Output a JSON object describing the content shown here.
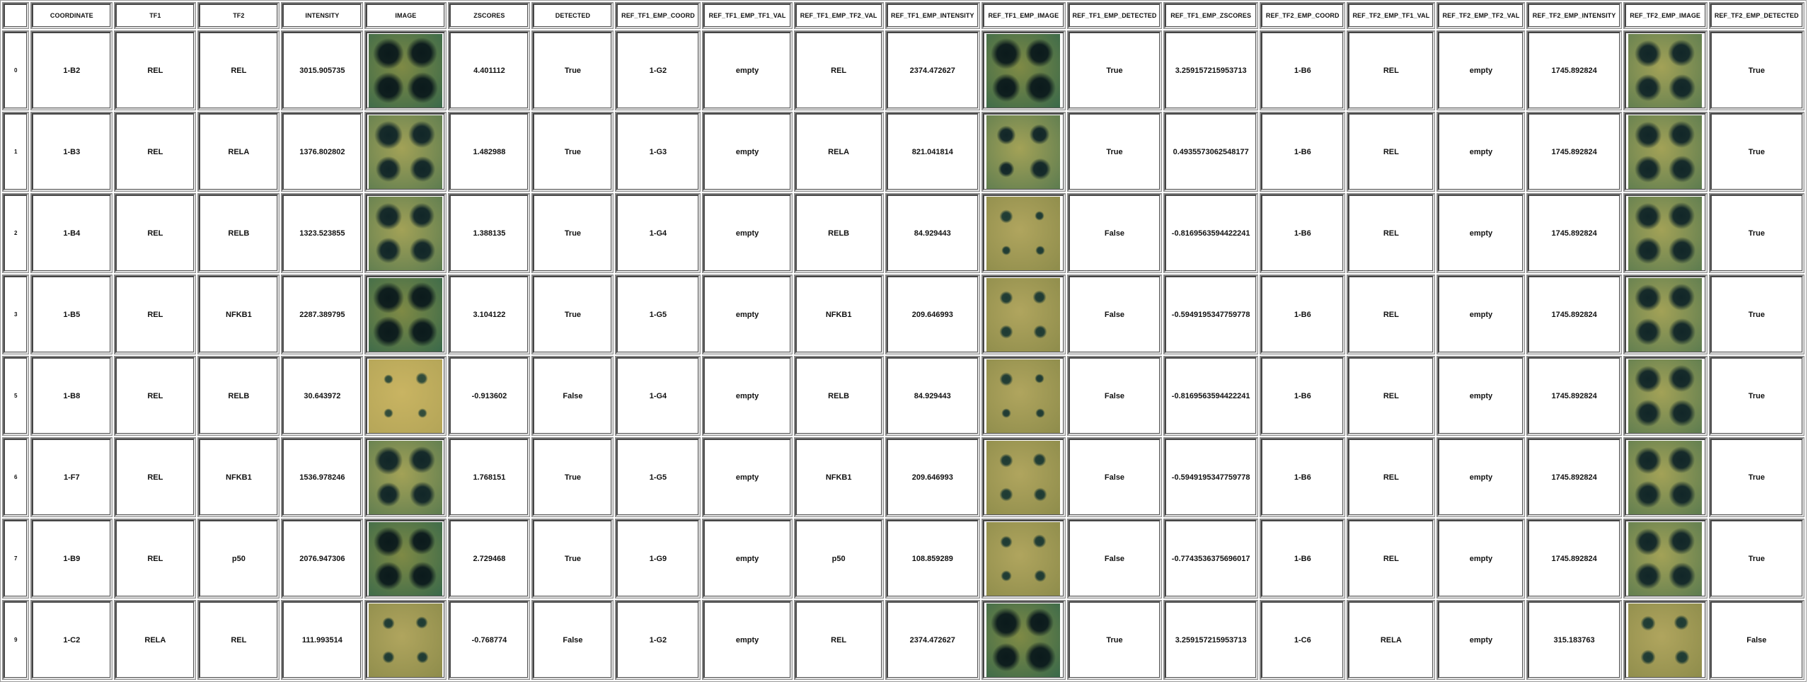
{
  "columns": [
    "",
    "COORDINATE",
    "TF1",
    "TF2",
    "INTENSITY",
    "IMAGE",
    "ZSCORES",
    "DETECTED",
    "REF_TF1_EMP_COORD",
    "REF_TF1_EMP_TF1_VAL",
    "REF_TF1_EMP_TF2_VAL",
    "REF_TF1_EMP_INTENSITY",
    "REF_TF1_EMP_IMAGE",
    "REF_TF1_EMP_DETECTED",
    "REF_TF1_EMP_ZSCORES",
    "REF_TF2_EMP_COORD",
    "REF_TF2_EMP_TF1_VAL",
    "REF_TF2_EMP_TF2_VAL",
    "REF_TF2_EMP_INTENSITY",
    "REF_TF2_EMP_IMAGE",
    "REF_TF2_EMP_DETECTED"
  ],
  "rows": [
    {
      "idx": "0",
      "coord": "1-B2",
      "tf1": "REL",
      "tf2": "REL",
      "intensity": "3015.905735",
      "image": {
        "tone": "dark",
        "spots": [
          1,
          1,
          1,
          1
        ]
      },
      "zscore": "4.401112",
      "detected": "True",
      "r1_coord": "1-G2",
      "r1_tf1": "empty",
      "r1_tf2": "REL",
      "r1_int": "2374.472627",
      "r1_image": {
        "tone": "dark",
        "spots": [
          1,
          0.9,
          0.9,
          1
        ]
      },
      "r1_det": "True",
      "r1_z": "3.259157215953713",
      "r2_coord": "1-B6",
      "r2_tf1": "REL",
      "r2_tf2": "empty",
      "r2_int": "1745.892824",
      "r2_image": {
        "tone": "mid",
        "spots": [
          0.85,
          0.85,
          0.85,
          0.85
        ]
      },
      "r2_det": "True"
    },
    {
      "idx": "1",
      "coord": "1-B3",
      "tf1": "REL",
      "tf2": "RELA",
      "intensity": "1376.802802",
      "image": {
        "tone": "mid",
        "spots": [
          0.9,
          0.85,
          0.8,
          0.8
        ]
      },
      "zscore": "1.482988",
      "detected": "True",
      "r1_coord": "1-G3",
      "r1_tf1": "empty",
      "r1_tf2": "RELA",
      "r1_int": "821.041814",
      "r1_image": {
        "tone": "mid",
        "spots": [
          0.55,
          0.6,
          0.45,
          0.65
        ]
      },
      "r1_det": "True",
      "r1_z": "0.4935573062548177",
      "r2_coord": "1-B6",
      "r2_tf1": "REL",
      "r2_tf2": "empty",
      "r2_int": "1745.892824",
      "r2_image": {
        "tone": "mid",
        "spots": [
          0.85,
          0.85,
          0.85,
          0.85
        ]
      },
      "r2_det": "True"
    },
    {
      "idx": "2",
      "coord": "1-B4",
      "tf1": "REL",
      "tf2": "RELB",
      "intensity": "1323.523855",
      "image": {
        "tone": "mid",
        "spots": [
          0.85,
          0.8,
          0.8,
          0.8
        ]
      },
      "zscore": "1.388135",
      "detected": "True",
      "r1_coord": "1-G4",
      "r1_tf1": "empty",
      "r1_tf2": "RELB",
      "r1_int": "84.929443",
      "r1_image": {
        "tone": "light",
        "spots": [
          0.35,
          0.2,
          0.2,
          0.2
        ]
      },
      "r1_det": "False",
      "r1_z": "-0.8169563594422241",
      "r2_coord": "1-B6",
      "r2_tf1": "REL",
      "r2_tf2": "empty",
      "r2_int": "1745.892824",
      "r2_image": {
        "tone": "mid",
        "spots": [
          0.85,
          0.85,
          0.85,
          0.85
        ]
      },
      "r2_det": "True"
    },
    {
      "idx": "3",
      "coord": "1-B5",
      "tf1": "REL",
      "tf2": "NFKB1",
      "intensity": "2287.389795",
      "image": {
        "tone": "dark",
        "spots": [
          1,
          0.95,
          1,
          0.95
        ]
      },
      "zscore": "3.104122",
      "detected": "True",
      "r1_coord": "1-G5",
      "r1_tf1": "empty",
      "r1_tf2": "NFKB1",
      "r1_int": "209.646993",
      "r1_image": {
        "tone": "light",
        "spots": [
          0.35,
          0.35,
          0.35,
          0.35
        ]
      },
      "r1_det": "False",
      "r1_z": "-0.5949195347759778",
      "r2_coord": "1-B6",
      "r2_tf1": "REL",
      "r2_tf2": "empty",
      "r2_int": "1745.892824",
      "r2_image": {
        "tone": "mid",
        "spots": [
          0.85,
          0.85,
          0.85,
          0.85
        ]
      },
      "r2_det": "True"
    },
    {
      "idx": "5",
      "coord": "1-B8",
      "tf1": "REL",
      "tf2": "RELB",
      "intensity": "30.643972",
      "image": {
        "tone": "pale",
        "spots": [
          0.2,
          0.3,
          0.2,
          0.2
        ]
      },
      "zscore": "-0.913602",
      "detected": "False",
      "r1_coord": "1-G4",
      "r1_tf1": "empty",
      "r1_tf2": "RELB",
      "r1_int": "84.929443",
      "r1_image": {
        "tone": "light",
        "spots": [
          0.35,
          0.2,
          0.2,
          0.2
        ]
      },
      "r1_det": "False",
      "r1_z": "-0.8169563594422241",
      "r2_coord": "1-B6",
      "r2_tf1": "REL",
      "r2_tf2": "empty",
      "r2_int": "1745.892824",
      "r2_image": {
        "tone": "mid",
        "spots": [
          0.85,
          0.85,
          0.85,
          0.85
        ]
      },
      "r2_det": "True"
    },
    {
      "idx": "6",
      "coord": "1-F7",
      "tf1": "REL",
      "tf2": "NFKB1",
      "intensity": "1536.978246",
      "image": {
        "tone": "mid",
        "spots": [
          0.9,
          0.85,
          0.75,
          0.8
        ]
      },
      "zscore": "1.768151",
      "detected": "True",
      "r1_coord": "1-G5",
      "r1_tf1": "empty",
      "r1_tf2": "NFKB1",
      "r1_int": "209.646993",
      "r1_image": {
        "tone": "light",
        "spots": [
          0.35,
          0.35,
          0.35,
          0.35
        ]
      },
      "r1_det": "False",
      "r1_z": "-0.5949195347759778",
      "r2_coord": "1-B6",
      "r2_tf1": "REL",
      "r2_tf2": "empty",
      "r2_int": "1745.892824",
      "r2_image": {
        "tone": "mid",
        "spots": [
          0.85,
          0.85,
          0.85,
          0.85
        ]
      },
      "r2_det": "True"
    },
    {
      "idx": "7",
      "coord": "1-B9",
      "tf1": "REL",
      "tf2": "p50",
      "intensity": "2076.947306",
      "image": {
        "tone": "dark",
        "spots": [
          0.95,
          0.85,
          0.9,
          0.9
        ]
      },
      "zscore": "2.729468",
      "detected": "True",
      "r1_coord": "1-G9",
      "r1_tf1": "empty",
      "r1_tf2": "p50",
      "r1_int": "108.859289",
      "r1_image": {
        "tone": "light",
        "spots": [
          0.3,
          0.35,
          0.25,
          0.3
        ]
      },
      "r1_det": "False",
      "r1_z": "-0.7743536375696017",
      "r2_coord": "1-B6",
      "r2_tf1": "REL",
      "r2_tf2": "empty",
      "r2_int": "1745.892824",
      "r2_image": {
        "tone": "mid",
        "spots": [
          0.85,
          0.85,
          0.85,
          0.85
        ]
      },
      "r2_det": "True"
    },
    {
      "idx": "9",
      "coord": "1-C2",
      "tf1": "RELA",
      "tf2": "REL",
      "intensity": "111.993514",
      "image": {
        "tone": "light",
        "spots": [
          0.3,
          0.3,
          0.3,
          0.3
        ]
      },
      "zscore": "-0.768774",
      "detected": "False",
      "r1_coord": "1-G2",
      "r1_tf1": "empty",
      "r1_tf2": "REL",
      "r1_int": "2374.472627",
      "r1_image": {
        "tone": "dark",
        "spots": [
          1,
          0.9,
          0.9,
          1
        ]
      },
      "r1_det": "True",
      "r1_z": "3.259157215953713",
      "r2_coord": "1-C6",
      "r2_tf1": "RELA",
      "r2_tf2": "empty",
      "r2_int": "315.183763",
      "r2_image": {
        "tone": "light",
        "spots": [
          0.4,
          0.4,
          0.4,
          0.4
        ]
      },
      "r2_det": "False"
    }
  ],
  "tones": {
    "dark": {
      "bg_center": "#7f8a45",
      "bg_edge": "#3c6a4a",
      "spot": "#0b1a1c"
    },
    "mid": {
      "bg_center": "#a3a257",
      "bg_edge": "#5f7d50",
      "spot": "#112628"
    },
    "light": {
      "bg_center": "#b0a55e",
      "bg_edge": "#8f8d4c",
      "spot": "#1d3a33"
    },
    "pale": {
      "bg_center": "#c9b462",
      "bg_edge": "#b4a558",
      "spot": "#2e4a3a"
    }
  }
}
